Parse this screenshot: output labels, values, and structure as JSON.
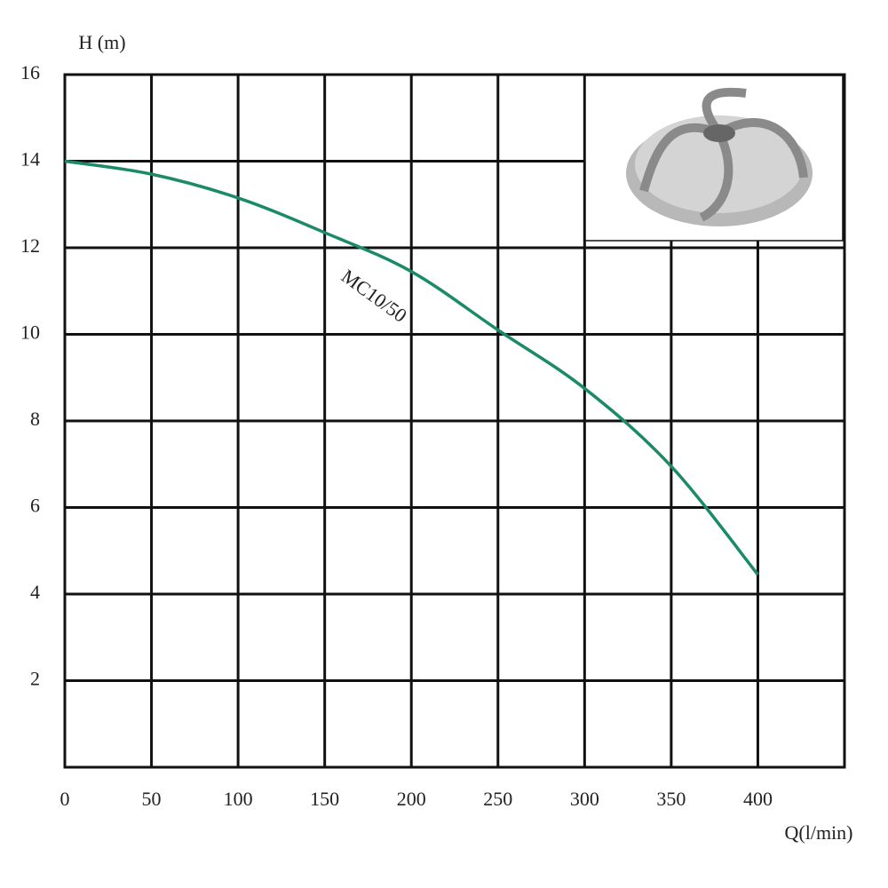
{
  "chart_data": {
    "type": "line",
    "y_label": "H (m)",
    "x_label": "Q(l/min)",
    "x": [
      0,
      50,
      100,
      150,
      200,
      250,
      300,
      350,
      400
    ],
    "series": [
      {
        "name": "MC10/50",
        "color": "#1b8a68",
        "values": [
          14.0,
          13.7,
          13.15,
          12.35,
          11.45,
          10.1,
          8.75,
          6.95,
          4.45
        ]
      }
    ],
    "xlim": [
      0,
      450
    ],
    "ylim": [
      0,
      16
    ],
    "xticks": [
      0,
      50,
      100,
      150,
      200,
      250,
      300,
      350,
      400
    ],
    "yticks": [
      2,
      4,
      6,
      8,
      10,
      12,
      14,
      16
    ],
    "grid": true
  }
}
